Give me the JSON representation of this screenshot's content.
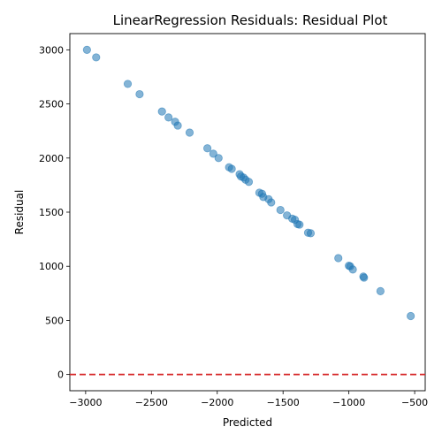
{
  "chart_data": {
    "type": "scatter",
    "title": "LinearRegression Residuals: Residual Plot",
    "xlabel": "Predicted",
    "ylabel": "Residual",
    "xlim": [
      -3120,
      -420
    ],
    "ylim": [
      -150,
      3150
    ],
    "xticks": [
      -3000,
      -2500,
      -2000,
      -1500,
      -1000,
      -500
    ],
    "yticks": [
      0,
      500,
      1000,
      1500,
      2000,
      2500,
      3000
    ],
    "point_color": "#1f77b4",
    "point_alpha": 0.55,
    "reference_line": {
      "y": 0,
      "color": "#d62728",
      "style": "dashed"
    },
    "grid": false,
    "points": [
      {
        "x": -2990,
        "y": 3000
      },
      {
        "x": -2920,
        "y": 2930
      },
      {
        "x": -2680,
        "y": 2685
      },
      {
        "x": -2590,
        "y": 2590
      },
      {
        "x": -2420,
        "y": 2430
      },
      {
        "x": -2370,
        "y": 2375
      },
      {
        "x": -2320,
        "y": 2335
      },
      {
        "x": -2300,
        "y": 2300
      },
      {
        "x": -2210,
        "y": 2235
      },
      {
        "x": -2075,
        "y": 2090
      },
      {
        "x": -2030,
        "y": 2040
      },
      {
        "x": -1990,
        "y": 2000
      },
      {
        "x": -1910,
        "y": 1915
      },
      {
        "x": -1890,
        "y": 1900
      },
      {
        "x": -1830,
        "y": 1850
      },
      {
        "x": -1820,
        "y": 1830
      },
      {
        "x": -1800,
        "y": 1820
      },
      {
        "x": -1785,
        "y": 1800
      },
      {
        "x": -1760,
        "y": 1780
      },
      {
        "x": -1680,
        "y": 1680
      },
      {
        "x": -1660,
        "y": 1670
      },
      {
        "x": -1650,
        "y": 1640
      },
      {
        "x": -1610,
        "y": 1620
      },
      {
        "x": -1590,
        "y": 1590
      },
      {
        "x": -1520,
        "y": 1520
      },
      {
        "x": -1470,
        "y": 1470
      },
      {
        "x": -1430,
        "y": 1440
      },
      {
        "x": -1410,
        "y": 1430
      },
      {
        "x": -1390,
        "y": 1390
      },
      {
        "x": -1375,
        "y": 1385
      },
      {
        "x": -1310,
        "y": 1310
      },
      {
        "x": -1290,
        "y": 1305
      },
      {
        "x": -1080,
        "y": 1075
      },
      {
        "x": -1000,
        "y": 1005
      },
      {
        "x": -990,
        "y": 1000
      },
      {
        "x": -970,
        "y": 970
      },
      {
        "x": -890,
        "y": 905
      },
      {
        "x": -885,
        "y": 895
      },
      {
        "x": -760,
        "y": 770
      },
      {
        "x": -530,
        "y": 540
      }
    ]
  }
}
